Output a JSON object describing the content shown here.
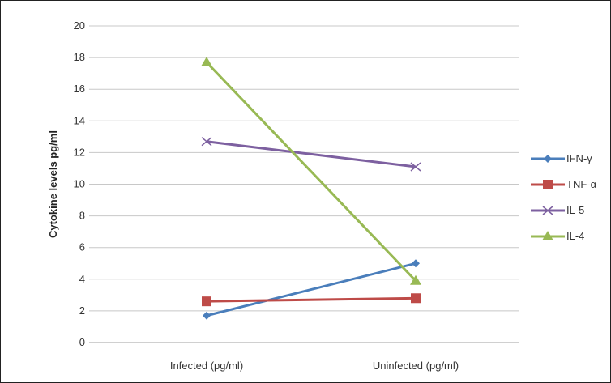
{
  "chart_data": {
    "type": "line",
    "title": "",
    "xlabel": "",
    "ylabel": "Cytokine levels  pg/ml",
    "categories": [
      "Infected (pg/ml)",
      "Uninfected (pg/ml)"
    ],
    "ylim": [
      0,
      20
    ],
    "yticks": [
      0,
      2,
      4,
      6,
      8,
      10,
      12,
      14,
      16,
      18,
      20
    ],
    "grid": true,
    "legend_position": "right",
    "series": [
      {
        "name": "IFN-γ",
        "values": [
          1.7,
          5.0
        ],
        "color": "#4A7EBB",
        "marker": "diamond"
      },
      {
        "name": "TNF-α",
        "values": [
          2.6,
          2.8
        ],
        "color": "#BE4B48",
        "marker": "square"
      },
      {
        "name": "IL-5",
        "values": [
          12.7,
          11.1
        ],
        "color": "#7D60A0",
        "marker": "x"
      },
      {
        "name": "IL-4",
        "values": [
          17.7,
          3.9
        ],
        "color": "#98B954",
        "marker": "triangle"
      }
    ]
  }
}
